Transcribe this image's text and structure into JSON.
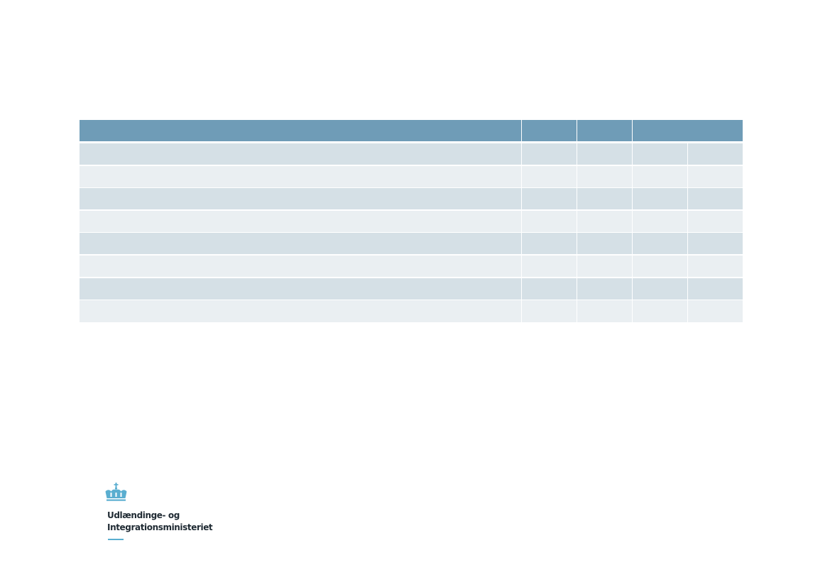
{
  "table": {
    "header": [
      "",
      "",
      "",
      ""
    ],
    "rows": [
      [
        "",
        "",
        "",
        "",
        ""
      ],
      [
        "",
        "",
        "",
        "",
        ""
      ],
      [
        "",
        "",
        "",
        "",
        ""
      ],
      [
        "",
        "",
        "",
        "",
        ""
      ],
      [
        "",
        "",
        "",
        "",
        ""
      ],
      [
        "",
        "",
        "",
        "",
        ""
      ],
      [
        "",
        "",
        "",
        "",
        ""
      ],
      [
        "",
        "",
        "",
        "",
        ""
      ]
    ]
  },
  "logo": {
    "line1": "Udlændinge- og",
    "line2": "Integrationsministeriet",
    "icon": "crown-icon"
  },
  "colors": {
    "header": "#6f9cb7",
    "row_dark": "#d5e0e6",
    "row_light": "#eaeff2",
    "logo_accent": "#5aaed0",
    "logo_text": "#1f2a33"
  }
}
